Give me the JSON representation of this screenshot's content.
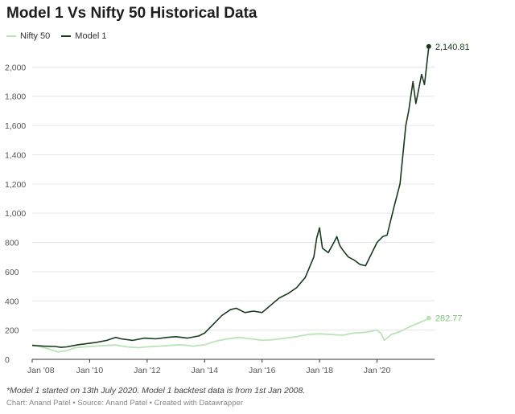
{
  "chart_data": {
    "type": "line",
    "title": "Model 1 Vs Nifty 50 Historical Data",
    "xlabel": "",
    "ylabel": "",
    "ylim": [
      0,
      2200
    ],
    "xlim": [
      2008.0,
      2022.0
    ],
    "yticks": [
      0,
      200,
      400,
      600,
      800,
      1000,
      1200,
      1400,
      1600,
      1800,
      2000
    ],
    "ytick_labels": [
      "0",
      "200",
      "400",
      "600",
      "800",
      "1,000",
      "1,200",
      "1,400",
      "1,600",
      "1,800",
      "2,000"
    ],
    "xticks": [
      2008,
      2010,
      2012,
      2014,
      2016,
      2018,
      2020
    ],
    "xtick_labels": [
      "Jan '08",
      "Jan '10",
      "Jan '12",
      "Jan '14",
      "Jan '16",
      "Jan '18",
      "Jan '20"
    ],
    "legend_position": "top-left",
    "grid": true,
    "series": [
      {
        "name": "Nifty 50",
        "color": "#b9e4b5",
        "end_label": "282.77",
        "x": [
          2008.0,
          2008.3,
          2008.6,
          2008.9,
          2009.2,
          2009.5,
          2009.8,
          2010.2,
          2010.6,
          2010.9,
          2011.3,
          2011.7,
          2012.0,
          2012.4,
          2012.8,
          2013.2,
          2013.6,
          2014.0,
          2014.4,
          2014.8,
          2015.2,
          2015.6,
          2016.0,
          2016.4,
          2016.8,
          2017.2,
          2017.6,
          2018.0,
          2018.4,
          2018.8,
          2019.2,
          2019.6,
          2020.0,
          2020.15,
          2020.25,
          2020.5,
          2020.8,
          2021.1,
          2021.4,
          2021.7,
          2021.8
        ],
        "values": [
          100,
          85,
          70,
          50,
          60,
          80,
          85,
          90,
          95,
          98,
          85,
          80,
          85,
          90,
          95,
          100,
          90,
          100,
          125,
          140,
          150,
          140,
          130,
          135,
          145,
          155,
          170,
          175,
          170,
          165,
          180,
          185,
          200,
          175,
          130,
          170,
          190,
          220,
          245,
          270,
          282.77
        ]
      },
      {
        "name": "Model 1",
        "color": "#173b1c",
        "end_label": "2,140.81",
        "x": [
          2008.0,
          2008.4,
          2008.8,
          2009.0,
          2009.2,
          2009.6,
          2009.8,
          2010.2,
          2010.6,
          2010.9,
          2011.1,
          2011.5,
          2011.9,
          2012.3,
          2012.7,
          2013.0,
          2013.4,
          2013.8,
          2014.0,
          2014.3,
          2014.6,
          2014.9,
          2015.1,
          2015.4,
          2015.7,
          2016.0,
          2016.3,
          2016.6,
          2016.9,
          2017.2,
          2017.5,
          2017.8,
          2017.9,
          2018.0,
          2018.1,
          2018.3,
          2018.5,
          2018.6,
          2018.7,
          2018.8,
          2019.0,
          2019.2,
          2019.4,
          2019.6,
          2019.8,
          2020.0,
          2020.2,
          2020.35,
          2020.45,
          2020.6,
          2020.8,
          2020.9,
          2021.0,
          2021.1,
          2021.25,
          2021.35,
          2021.45,
          2021.55,
          2021.65,
          2021.72,
          2021.8
        ],
        "values": [
          95,
          90,
          88,
          82,
          85,
          100,
          105,
          115,
          130,
          150,
          140,
          130,
          145,
          140,
          150,
          155,
          145,
          160,
          180,
          240,
          300,
          340,
          350,
          320,
          330,
          320,
          370,
          420,
          450,
          490,
          560,
          700,
          830,
          900,
          760,
          730,
          800,
          840,
          780,
          750,
          700,
          680,
          650,
          640,
          720,
          800,
          840,
          850,
          930,
          1050,
          1200,
          1400,
          1600,
          1700,
          1900,
          1750,
          1850,
          1950,
          1880,
          2000,
          2140.81
        ]
      }
    ]
  },
  "footnote": "*Model 1 started on 13th July 2020. Model 1 backtest data is from 1st Jan 2008.",
  "credit": "Chart: Anand Patel • Source: Anand Patel • Created with Datawrapper"
}
